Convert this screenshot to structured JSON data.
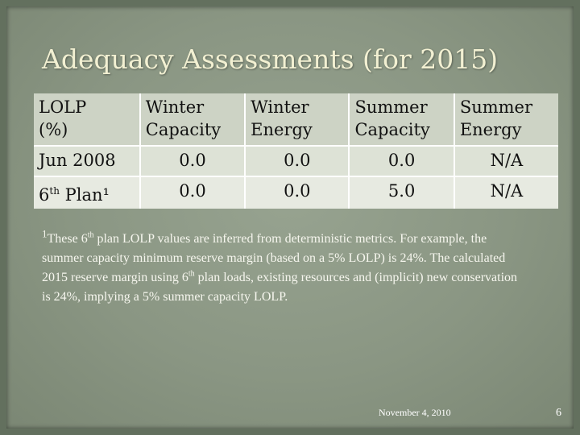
{
  "slide": {
    "title": "Adequacy Assessments (for 2015)",
    "table": {
      "headers": [
        {
          "line1": "LOLP",
          "line2": "(%)"
        },
        {
          "line1": "Winter",
          "line2": "Capacity"
        },
        {
          "line1": "Winter",
          "line2": "Energy"
        },
        {
          "line1": "Summer",
          "line2": "Capacity"
        },
        {
          "line1": "Summer",
          "line2": "Energy"
        }
      ],
      "rows": [
        {
          "label": "Jun 2008",
          "label_sup": "",
          "label_suffix": "",
          "values": [
            "0.0",
            "0.0",
            "0.0",
            "N/A"
          ]
        },
        {
          "label": "6",
          "label_sup": "th",
          "label_suffix": " Plan¹",
          "values": [
            "0.0",
            "0.0",
            "5.0",
            "N/A"
          ]
        }
      ]
    },
    "footnote": {
      "marker": "1",
      "part1": "These 6",
      "sup1": "th",
      "part2": " plan LOLP values are inferred from deterministic metrics.  For example, the summer capacity minimum reserve margin (based on a 5% LOLP) is 24%.  The calculated 2015 reserve margin using 6",
      "sup2": "th",
      "part3": " plan loads, existing resources and (implicit) new conservation is 24%, implying a 5% summer capacity LOLP."
    },
    "footer": {
      "date": "November 4, 2010",
      "page_number": "6"
    }
  }
}
